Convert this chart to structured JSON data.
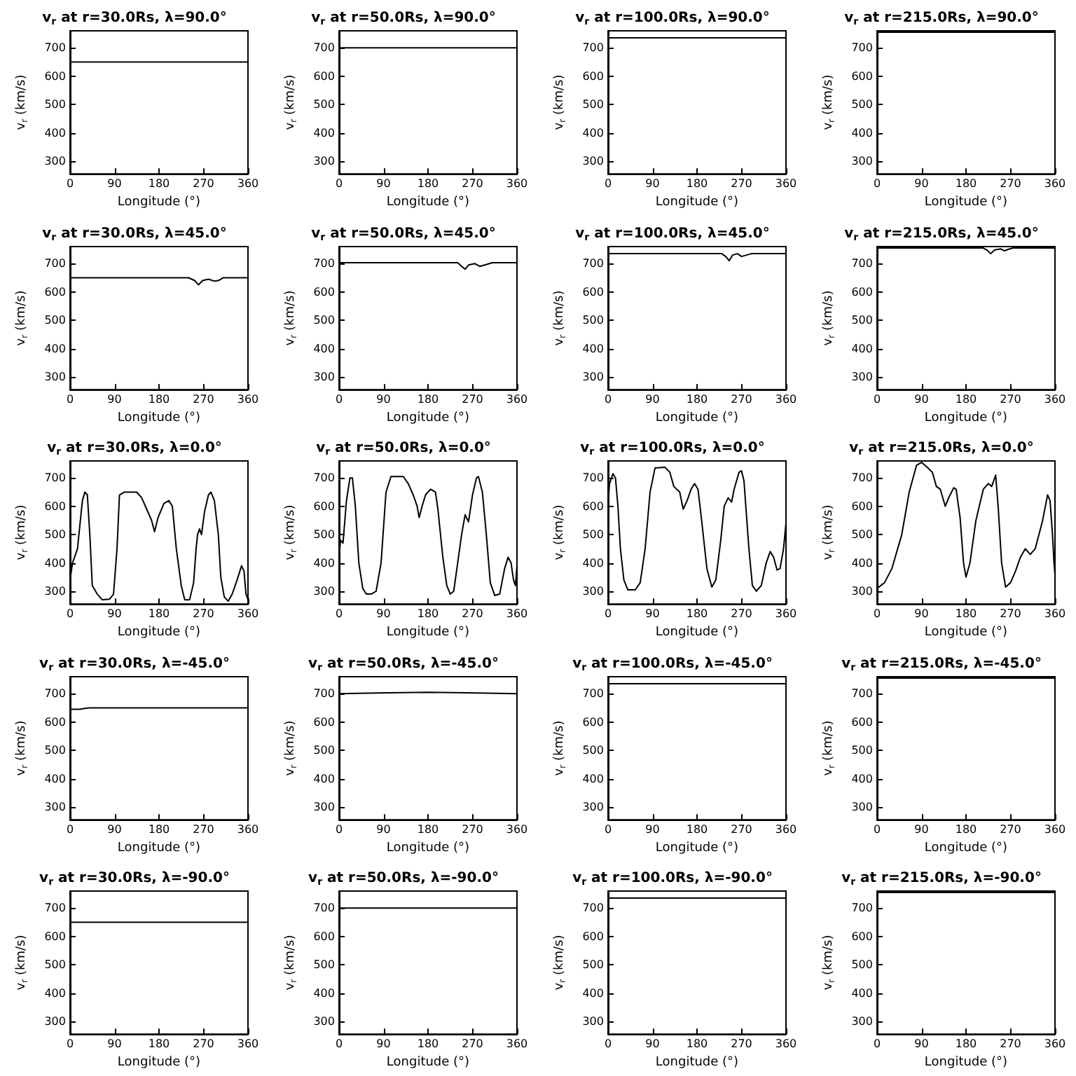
{
  "chart_data": [
    {
      "type": "line",
      "title": "v$_{r}$ at r=30.0Rs, λ=90.0°",
      "xlabel": "Longitude (°)",
      "ylabel": "v$_{r}$ (km/s)",
      "x": [
        0,
        360
      ],
      "values": [
        650,
        650
      ],
      "color": "#000000",
      "xlim": [
        0,
        360
      ],
      "ylim": [
        255,
        760
      ],
      "xticks": [
        0,
        90,
        180,
        270,
        360
      ],
      "yticks": [
        300,
        400,
        500,
        600,
        700
      ],
      "marker": "none"
    },
    {
      "type": "line",
      "title": "v$_{r}$ at r=50.0Rs, λ=90.0°",
      "xlabel": "Longitude (°)",
      "ylabel": "v$_{r}$ (km/s)",
      "x": [
        0,
        360
      ],
      "values": [
        700,
        700
      ],
      "color": "#000000",
      "xlim": [
        0,
        360
      ],
      "ylim": [
        255,
        760
      ],
      "xticks": [
        0,
        90,
        180,
        270,
        360
      ],
      "yticks": [
        300,
        400,
        500,
        600,
        700
      ],
      "marker": "none"
    },
    {
      "type": "line",
      "title": "v$_{r}$ at r=100.0Rs, λ=90.0°",
      "xlabel": "Longitude (°)",
      "ylabel": "v$_{r}$ (km/s)",
      "x": [
        0,
        360
      ],
      "values": [
        735,
        735
      ],
      "color": "#000000",
      "xlim": [
        0,
        360
      ],
      "ylim": [
        255,
        760
      ],
      "xticks": [
        0,
        90,
        180,
        270,
        360
      ],
      "yticks": [
        300,
        400,
        500,
        600,
        700
      ],
      "marker": "none"
    },
    {
      "type": "line",
      "title": "v$_{r}$ at r=215.0Rs, λ=90.0°",
      "xlabel": "Longitude (°)",
      "ylabel": "v$_{r}$ (km/s)",
      "x": [
        0,
        360
      ],
      "values": [
        755,
        755
      ],
      "color": "#000000",
      "xlim": [
        0,
        360
      ],
      "ylim": [
        255,
        760
      ],
      "xticks": [
        0,
        90,
        180,
        270,
        360
      ],
      "yticks": [
        300,
        400,
        500,
        600,
        700
      ],
      "marker": "none"
    },
    {
      "type": "line",
      "title": "v$_{r}$ at r=30.0Rs, λ=45.0°",
      "xlabel": "Longitude (°)",
      "ylabel": "v$_{r}$ (km/s)",
      "x": [
        0,
        240,
        252,
        260,
        268,
        280,
        292,
        300,
        310,
        360
      ],
      "values": [
        650,
        650,
        640,
        625,
        640,
        645,
        638,
        640,
        650,
        650
      ],
      "color": "#000000",
      "xlim": [
        0,
        360
      ],
      "ylim": [
        255,
        760
      ],
      "xticks": [
        0,
        90,
        180,
        270,
        360
      ],
      "yticks": [
        300,
        400,
        500,
        600,
        700
      ],
      "marker": "none"
    },
    {
      "type": "line",
      "title": "v$_{r}$ at r=50.0Rs, λ=45.0°",
      "xlabel": "Longitude (°)",
      "ylabel": "v$_{r}$ (km/s)",
      "x": [
        0,
        240,
        248,
        255,
        262,
        275,
        285,
        295,
        310,
        360
      ],
      "values": [
        703,
        703,
        690,
        680,
        695,
        700,
        690,
        695,
        703,
        703
      ],
      "color": "#000000",
      "xlim": [
        0,
        360
      ],
      "ylim": [
        255,
        760
      ],
      "xticks": [
        0,
        90,
        180,
        270,
        360
      ],
      "yticks": [
        300,
        400,
        500,
        600,
        700
      ],
      "marker": "none"
    },
    {
      "type": "line",
      "title": "v$_{r}$ at r=100.0Rs, λ=45.0°",
      "xlabel": "Longitude (°)",
      "ylabel": "v$_{r}$ (km/s)",
      "x": [
        0,
        230,
        238,
        245,
        252,
        262,
        270,
        280,
        290,
        360
      ],
      "values": [
        735,
        735,
        725,
        710,
        730,
        735,
        725,
        730,
        735,
        735
      ],
      "color": "#000000",
      "xlim": [
        0,
        360
      ],
      "ylim": [
        255,
        760
      ],
      "xticks": [
        0,
        90,
        180,
        270,
        360
      ],
      "yticks": [
        300,
        400,
        500,
        600,
        700
      ],
      "marker": "none"
    },
    {
      "type": "line",
      "title": "v$_{r}$ at r=215.0Rs, λ=45.0°",
      "xlabel": "Longitude (°)",
      "ylabel": "v$_{r}$ (km/s)",
      "x": [
        0,
        215,
        222,
        230,
        238,
        250,
        258,
        265,
        275,
        360
      ],
      "values": [
        755,
        755,
        748,
        735,
        748,
        752,
        745,
        750,
        755,
        755
      ],
      "color": "#000000",
      "xlim": [
        0,
        360
      ],
      "ylim": [
        255,
        760
      ],
      "xticks": [
        0,
        90,
        180,
        270,
        360
      ],
      "yticks": [
        300,
        400,
        500,
        600,
        700
      ],
      "marker": "none"
    },
    {
      "type": "line",
      "title": "v$_{r}$ at r=30.0Rs, λ=0.0°",
      "xlabel": "Longitude (°)",
      "ylabel": "v$_{r}$ (km/s)",
      "x": [
        0,
        5,
        15,
        25,
        30,
        35,
        40,
        45,
        55,
        65,
        80,
        88,
        95,
        100,
        110,
        135,
        145,
        155,
        165,
        171,
        178,
        190,
        200,
        207,
        215,
        225,
        232,
        242,
        250,
        255,
        258,
        262,
        266,
        272,
        280,
        285,
        292,
        300,
        305,
        312,
        320,
        328,
        338,
        347,
        352,
        356,
        360
      ],
      "values": [
        340,
        400,
        450,
        620,
        650,
        640,
        500,
        320,
        290,
        270,
        272,
        290,
        450,
        640,
        650,
        650,
        630,
        590,
        550,
        510,
        560,
        610,
        620,
        600,
        450,
        320,
        270,
        270,
        330,
        450,
        500,
        520,
        500,
        580,
        640,
        650,
        620,
        500,
        350,
        280,
        265,
        290,
        340,
        390,
        370,
        290,
        270
      ],
      "color": "#000000",
      "xlim": [
        0,
        360
      ],
      "ylim": [
        255,
        760
      ],
      "xticks": [
        0,
        90,
        180,
        270,
        360
      ],
      "yticks": [
        300,
        400,
        500,
        600,
        700
      ],
      "marker": "none"
    },
    {
      "type": "line",
      "title": "v$_{r}$ at r=50.0Rs, λ=0.0°",
      "xlabel": "Longitude (°)",
      "ylabel": "v$_{r}$ (km/s)",
      "x": [
        0,
        3,
        8,
        15,
        22,
        27,
        33,
        40,
        48,
        55,
        65,
        75,
        85,
        95,
        105,
        130,
        140,
        150,
        158,
        162,
        168,
        175,
        185,
        195,
        200,
        210,
        218,
        225,
        232,
        240,
        248,
        255,
        262,
        270,
        278,
        282,
        290,
        298,
        306,
        315,
        325,
        335,
        342,
        348,
        353,
        357,
        360
      ],
      "values": [
        420,
        480,
        470,
        620,
        700,
        700,
        600,
        400,
        310,
        290,
        290,
        300,
        400,
        650,
        705,
        705,
        680,
        640,
        600,
        560,
        600,
        640,
        660,
        650,
        590,
        420,
        320,
        290,
        300,
        400,
        500,
        570,
        545,
        640,
        700,
        705,
        650,
        500,
        330,
        285,
        290,
        380,
        420,
        400,
        340,
        320,
        390
      ],
      "color": "#000000",
      "xlim": [
        0,
        360
      ],
      "ylim": [
        255,
        760
      ],
      "xticks": [
        0,
        90,
        180,
        270,
        360
      ],
      "yticks": [
        300,
        400,
        500,
        600,
        700
      ],
      "marker": "none"
    },
    {
      "type": "line",
      "title": "v$_{r}$ at r=100.0Rs, λ=0.0°",
      "xlabel": "Longitude (°)",
      "ylabel": "v$_{r}$ (km/s)",
      "x": [
        0,
        3,
        10,
        15,
        20,
        25,
        32,
        40,
        55,
        65,
        75,
        85,
        95,
        115,
        125,
        133,
        145,
        152,
        160,
        168,
        175,
        182,
        190,
        200,
        210,
        218,
        228,
        235,
        243,
        250,
        255,
        265,
        270,
        275,
        285,
        292,
        300,
        310,
        320,
        328,
        335,
        342,
        348,
        355,
        360
      ],
      "values": [
        610,
        680,
        715,
        700,
        600,
        450,
        340,
        305,
        305,
        330,
        450,
        650,
        735,
        738,
        720,
        670,
        650,
        590,
        620,
        660,
        680,
        660,
        540,
        380,
        315,
        340,
        480,
        600,
        630,
        615,
        660,
        720,
        725,
        690,
        450,
        320,
        300,
        320,
        400,
        440,
        420,
        375,
        380,
        450,
        540
      ],
      "color": "#000000",
      "xlim": [
        0,
        360
      ],
      "ylim": [
        255,
        760
      ],
      "xticks": [
        0,
        90,
        180,
        270,
        360
      ],
      "yticks": [
        300,
        400,
        500,
        600,
        700
      ],
      "marker": "none"
    },
    {
      "type": "line",
      "title": "v$_{r}$ at r=215.0Rs, λ=0.0°",
      "xlabel": "Longitude (°)",
      "ylabel": "v$_{r}$ (km/s)",
      "x": [
        0,
        15,
        30,
        50,
        65,
        80,
        90,
        100,
        112,
        120,
        128,
        138,
        145,
        155,
        160,
        168,
        175,
        180,
        188,
        200,
        215,
        225,
        232,
        240,
        245,
        252,
        260,
        270,
        280,
        290,
        300,
        310,
        320,
        335,
        345,
        350,
        355,
        358,
        360
      ],
      "values": [
        310,
        330,
        380,
        500,
        650,
        745,
        755,
        740,
        720,
        670,
        660,
        600,
        630,
        665,
        660,
        560,
        400,
        350,
        400,
        550,
        660,
        680,
        670,
        710,
        600,
        400,
        315,
        330,
        370,
        420,
        450,
        430,
        450,
        550,
        640,
        620,
        500,
        400,
        360
      ],
      "color": "#000000",
      "xlim": [
        0,
        360
      ],
      "ylim": [
        255,
        760
      ],
      "xticks": [
        0,
        90,
        180,
        270,
        360
      ],
      "yticks": [
        300,
        400,
        500,
        600,
        700
      ],
      "marker": "none"
    },
    {
      "type": "line",
      "title": "v$_{r}$ at r=30.0Rs, λ=-45.0°",
      "xlabel": "Longitude (°)",
      "ylabel": "v$_{r}$ (km/s)",
      "x": [
        0,
        20,
        30,
        40,
        360
      ],
      "values": [
        645,
        645,
        648,
        650,
        650
      ],
      "color": "#000000",
      "xlim": [
        0,
        360
      ],
      "ylim": [
        255,
        760
      ],
      "xticks": [
        0,
        90,
        180,
        270,
        360
      ],
      "yticks": [
        300,
        400,
        500,
        600,
        700
      ],
      "marker": "none"
    },
    {
      "type": "line",
      "title": "v$_{r}$ at r=50.0Rs, λ=-45.0°",
      "xlabel": "Longitude (°)",
      "ylabel": "v$_{r}$ (km/s)",
      "x": [
        0,
        100,
        180,
        260,
        360
      ],
      "values": [
        700,
        703,
        705,
        703,
        700
      ],
      "color": "#000000",
      "xlim": [
        0,
        360
      ],
      "ylim": [
        255,
        760
      ],
      "xticks": [
        0,
        90,
        180,
        270,
        360
      ],
      "yticks": [
        300,
        400,
        500,
        600,
        700
      ],
      "marker": "none"
    },
    {
      "type": "line",
      "title": "v$_{r}$ at r=100.0Rs, λ=-45.0°",
      "xlabel": "Longitude (°)",
      "ylabel": "v$_{r}$ (km/s)",
      "x": [
        0,
        360
      ],
      "values": [
        735,
        735
      ],
      "color": "#000000",
      "xlim": [
        0,
        360
      ],
      "ylim": [
        255,
        760
      ],
      "xticks": [
        0,
        90,
        180,
        270,
        360
      ],
      "yticks": [
        300,
        400,
        500,
        600,
        700
      ],
      "marker": "none"
    },
    {
      "type": "line",
      "title": "v$_{r}$ at r=215.0Rs, λ=-45.0°",
      "xlabel": "Longitude (°)",
      "ylabel": "v$_{r}$ (km/s)",
      "x": [
        0,
        360
      ],
      "values": [
        755,
        755
      ],
      "color": "#000000",
      "xlim": [
        0,
        360
      ],
      "ylim": [
        255,
        760
      ],
      "xticks": [
        0,
        90,
        180,
        270,
        360
      ],
      "yticks": [
        300,
        400,
        500,
        600,
        700
      ],
      "marker": "none"
    },
    {
      "type": "line",
      "title": "v$_{r}$ at r=30.0Rs, λ=-90.0°",
      "xlabel": "Longitude (°)",
      "ylabel": "v$_{r}$ (km/s)",
      "x": [
        0,
        360
      ],
      "values": [
        650,
        650
      ],
      "color": "#000000",
      "xlim": [
        0,
        360
      ],
      "ylim": [
        255,
        760
      ],
      "xticks": [
        0,
        90,
        180,
        270,
        360
      ],
      "yticks": [
        300,
        400,
        500,
        600,
        700
      ],
      "marker": "none"
    },
    {
      "type": "line",
      "title": "v$_{r}$ at r=50.0Rs, λ=-90.0°",
      "xlabel": "Longitude (°)",
      "ylabel": "v$_{r}$ (km/s)",
      "x": [
        0,
        360
      ],
      "values": [
        700,
        700
      ],
      "color": "#000000",
      "xlim": [
        0,
        360
      ],
      "ylim": [
        255,
        760
      ],
      "xticks": [
        0,
        90,
        180,
        270,
        360
      ],
      "yticks": [
        300,
        400,
        500,
        600,
        700
      ],
      "marker": "none"
    },
    {
      "type": "line",
      "title": "v$_{r}$ at r=100.0Rs, λ=-90.0°",
      "xlabel": "Longitude (°)",
      "ylabel": "v$_{r}$ (km/s)",
      "x": [
        0,
        360
      ],
      "values": [
        735,
        735
      ],
      "color": "#000000",
      "xlim": [
        0,
        360
      ],
      "ylim": [
        255,
        760
      ],
      "xticks": [
        0,
        90,
        180,
        270,
        360
      ],
      "yticks": [
        300,
        400,
        500,
        600,
        700
      ],
      "marker": "none"
    },
    {
      "type": "line",
      "title": "v$_{r}$ at r=215.0Rs, λ=-90.0°",
      "xlabel": "Longitude (°)",
      "ylabel": "v$_{r}$ (km/s)",
      "x": [
        0,
        360
      ],
      "values": [
        755,
        755
      ],
      "color": "#000000",
      "xlim": [
        0,
        360
      ],
      "ylim": [
        255,
        760
      ],
      "xticks": [
        0,
        90,
        180,
        270,
        360
      ],
      "yticks": [
        300,
        400,
        500,
        600,
        700
      ],
      "marker": "none"
    }
  ]
}
